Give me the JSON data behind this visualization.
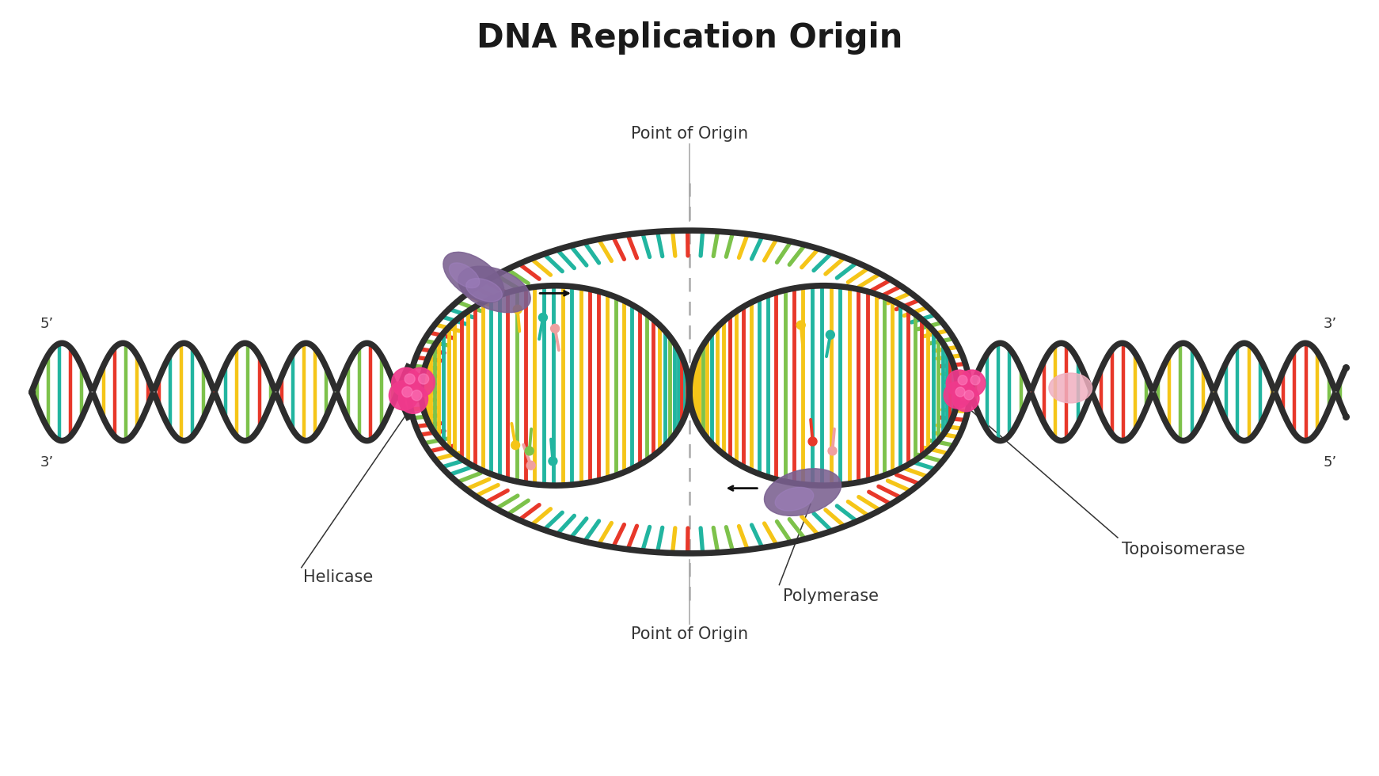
{
  "title": "DNA Replication Origin",
  "title_fontsize": 30,
  "title_fontweight": "bold",
  "background_color": "#ffffff",
  "strand_color": "#2d2d2d",
  "strand_lw": 5.5,
  "base_colors": [
    "#e8382a",
    "#22b5a0",
    "#f5c518",
    "#7dc24b"
  ],
  "helicase_color": "#f03a8c",
  "polymerase_color": "#7a5c8a",
  "label_color": "#333333",
  "label_fontsize": 15,
  "prime_fontsize": 13,
  "annotations": {
    "point_of_origin_top": "Point of Origin",
    "point_of_origin_bottom": "Point of Origin",
    "helicase": "Helicase",
    "polymerase": "Polymerase",
    "topoisomerase": "Topoisomerase",
    "five_prime_left": "5’",
    "three_prime_left": "3’",
    "three_prime_right": "3’",
    "five_prime_right": "5’"
  }
}
